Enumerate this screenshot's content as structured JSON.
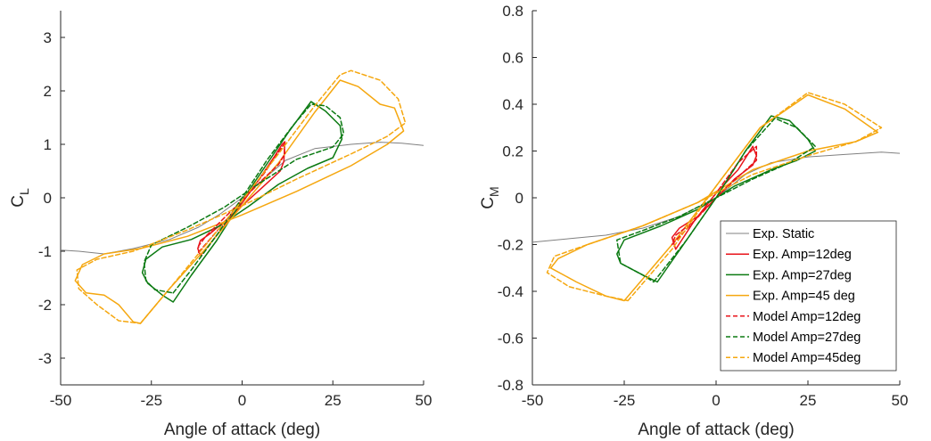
{
  "chart_data": [
    {
      "type": "line",
      "xlabel": "Angle of attack (deg)",
      "ylabel_main": "C",
      "ylabel_sub": "L",
      "xlim": [
        -50,
        50
      ],
      "ylim": [
        -3.5,
        3.5
      ],
      "xticks": [
        -50,
        -25,
        0,
        25,
        50
      ],
      "yticks": [
        -3,
        -2,
        -1,
        0,
        1,
        2,
        3
      ],
      "grid": false,
      "series": [
        {
          "name": "Exp. Static",
          "color": "#808080",
          "style": "solid",
          "points": [
            [
              -50,
              -0.98
            ],
            [
              -45,
              -1.0
            ],
            [
              -38,
              -1.05
            ],
            [
              -30,
              -0.95
            ],
            [
              -20,
              -0.78
            ],
            [
              -12,
              -0.55
            ],
            [
              -6,
              -0.3
            ],
            [
              0,
              0.0
            ],
            [
              6,
              0.35
            ],
            [
              12,
              0.7
            ],
            [
              20,
              0.92
            ],
            [
              30,
              1.0
            ],
            [
              38,
              1.04
            ],
            [
              44,
              1.02
            ],
            [
              50,
              0.98
            ]
          ]
        },
        {
          "name": "Exp. Amp=12deg",
          "color": "#e8141b",
          "style": "solid",
          "points": [
            [
              -11.5,
              -1.08
            ],
            [
              -6,
              -0.62
            ],
            [
              0,
              -0.1
            ],
            [
              5,
              0.38
            ],
            [
              9,
              0.78
            ],
            [
              11,
              1.0
            ],
            [
              11.8,
              1.05
            ],
            [
              11.5,
              0.68
            ],
            [
              10.5,
              0.5
            ],
            [
              6,
              0.22
            ],
            [
              0,
              -0.15
            ],
            [
              -5,
              -0.45
            ],
            [
              -9,
              -0.68
            ],
            [
              -11.5,
              -0.8
            ],
            [
              -12.2,
              -0.95
            ],
            [
              -11.5,
              -1.08
            ]
          ]
        },
        {
          "name": "Exp. Amp=27deg",
          "color": "#0b7a12",
          "style": "solid",
          "points": [
            [
              -19,
              -1.95
            ],
            [
              -14,
              -1.45
            ],
            [
              -7,
              -0.8
            ],
            [
              0,
              -0.05
            ],
            [
              7,
              0.65
            ],
            [
              13,
              1.25
            ],
            [
              19,
              1.8
            ],
            [
              23,
              1.62
            ],
            [
              27,
              1.35
            ],
            [
              27.5,
              1.1
            ],
            [
              25,
              0.75
            ],
            [
              18,
              0.55
            ],
            [
              10,
              0.25
            ],
            [
              2,
              -0.15
            ],
            [
              -6,
              -0.52
            ],
            [
              -14,
              -0.78
            ],
            [
              -22,
              -0.92
            ],
            [
              -26.5,
              -1.15
            ],
            [
              -27.5,
              -1.4
            ],
            [
              -26,
              -1.6
            ],
            [
              -22,
              -1.82
            ],
            [
              -19,
              -1.95
            ]
          ]
        },
        {
          "name": "Exp. Amp=45 deg",
          "color": "#f5a70f",
          "style": "solid",
          "points": [
            [
              -28,
              -2.35
            ],
            [
              -20,
              -1.7
            ],
            [
              -10,
              -0.95
            ],
            [
              0,
              -0.15
            ],
            [
              10,
              0.65
            ],
            [
              20,
              1.6
            ],
            [
              27,
              2.2
            ],
            [
              32,
              2.08
            ],
            [
              38,
              1.75
            ],
            [
              42,
              1.68
            ],
            [
              44.5,
              1.25
            ],
            [
              40,
              1.0
            ],
            [
              30,
              0.6
            ],
            [
              15,
              0.12
            ],
            [
              0,
              -0.32
            ],
            [
              -15,
              -0.72
            ],
            [
              -28,
              -0.95
            ],
            [
              -38,
              -1.05
            ],
            [
              -44,
              -1.25
            ],
            [
              -46,
              -1.55
            ],
            [
              -43,
              -1.78
            ],
            [
              -38,
              -1.82
            ],
            [
              -34,
              -2.0
            ],
            [
              -30,
              -2.32
            ],
            [
              -28,
              -2.35
            ]
          ]
        },
        {
          "name": "Model Amp=12deg",
          "color": "#e8141b",
          "style": "dashed",
          "points": [
            [
              -12,
              -1.02
            ],
            [
              -6,
              -0.55
            ],
            [
              0,
              -0.05
            ],
            [
              6,
              0.45
            ],
            [
              11.5,
              1.0
            ],
            [
              11.8,
              0.82
            ],
            [
              10,
              0.62
            ],
            [
              5,
              0.3
            ],
            [
              0,
              -0.05
            ],
            [
              -5,
              -0.38
            ],
            [
              -10,
              -0.72
            ],
            [
              -12,
              -0.9
            ],
            [
              -12,
              -1.02
            ]
          ]
        },
        {
          "name": "Model Amp=27deg",
          "color": "#0b7a12",
          "style": "dashed",
          "points": [
            [
              -19,
              -1.78
            ],
            [
              -14,
              -1.35
            ],
            [
              -7,
              -0.7
            ],
            [
              0,
              0.0
            ],
            [
              7,
              0.72
            ],
            [
              14,
              1.35
            ],
            [
              19,
              1.75
            ],
            [
              23,
              1.72
            ],
            [
              27,
              1.5
            ],
            [
              28,
              1.2
            ],
            [
              25,
              0.95
            ],
            [
              15,
              0.72
            ],
            [
              5,
              0.28
            ],
            [
              -5,
              -0.18
            ],
            [
              -15,
              -0.55
            ],
            [
              -25,
              -0.88
            ],
            [
              -27,
              -1.2
            ],
            [
              -26.5,
              -1.55
            ],
            [
              -24,
              -1.72
            ],
            [
              -19,
              -1.78
            ]
          ]
        },
        {
          "name": "Model Amp=45deg",
          "color": "#f5a70f",
          "style": "dashed",
          "points": [
            [
              -28,
              -2.35
            ],
            [
              -20,
              -1.7
            ],
            [
              -10,
              -0.88
            ],
            [
              0,
              -0.05
            ],
            [
              10,
              0.82
            ],
            [
              20,
              1.72
            ],
            [
              27,
              2.3
            ],
            [
              30,
              2.38
            ],
            [
              38,
              2.2
            ],
            [
              43,
              1.85
            ],
            [
              45,
              1.4
            ],
            [
              40,
              1.15
            ],
            [
              30,
              0.82
            ],
            [
              15,
              0.35
            ],
            [
              0,
              -0.15
            ],
            [
              -15,
              -0.6
            ],
            [
              -30,
              -1.0
            ],
            [
              -40,
              -1.15
            ],
            [
              -45.5,
              -1.35
            ],
            [
              -45,
              -1.7
            ],
            [
              -40,
              -2.0
            ],
            [
              -34,
              -2.3
            ],
            [
              -28,
              -2.35
            ]
          ]
        }
      ]
    },
    {
      "type": "line",
      "xlabel": "Angle of attack (deg)",
      "ylabel_main": "C",
      "ylabel_sub": "M",
      "xlim": [
        -50,
        50
      ],
      "ylim": [
        -0.8,
        0.8
      ],
      "xticks": [
        -50,
        -25,
        0,
        25,
        50
      ],
      "yticks": [
        -0.8,
        -0.6,
        -0.4,
        -0.2,
        0,
        0.2,
        0.4,
        0.6,
        0.8
      ],
      "grid": false,
      "legend": "bottom-right",
      "series": [
        {
          "name": "Exp. Static",
          "color": "#808080",
          "style": "solid",
          "points": [
            [
              -50,
              -0.19
            ],
            [
              -40,
              -0.175
            ],
            [
              -30,
              -0.16
            ],
            [
              -20,
              -0.13
            ],
            [
              -10,
              -0.08
            ],
            [
              0,
              0.0
            ],
            [
              8,
              0.1
            ],
            [
              15,
              0.15
            ],
            [
              25,
              0.175
            ],
            [
              35,
              0.185
            ],
            [
              45,
              0.195
            ],
            [
              50,
              0.19
            ]
          ]
        },
        {
          "name": "Exp. Amp=12deg",
          "color": "#e8141b",
          "style": "solid",
          "points": [
            [
              -11,
              -0.22
            ],
            [
              -6,
              -0.1
            ],
            [
              0,
              0.02
            ],
            [
              6,
              0.12
            ],
            [
              10,
              0.22
            ],
            [
              11,
              0.18
            ],
            [
              10,
              0.14
            ],
            [
              5,
              0.08
            ],
            [
              0,
              0.0
            ],
            [
              -5,
              -0.08
            ],
            [
              -10,
              -0.13
            ],
            [
              -12,
              -0.17
            ],
            [
              -11,
              -0.22
            ]
          ]
        },
        {
          "name": "Exp. Amp=27deg",
          "color": "#0b7a12",
          "style": "solid",
          "points": [
            [
              -16,
              -0.36
            ],
            [
              -8,
              -0.18
            ],
            [
              0,
              0.0
            ],
            [
              8,
              0.2
            ],
            [
              15,
              0.35
            ],
            [
              20,
              0.33
            ],
            [
              25,
              0.25
            ],
            [
              27,
              0.2
            ],
            [
              22,
              0.16
            ],
            [
              15,
              0.12
            ],
            [
              5,
              0.05
            ],
            [
              -5,
              -0.05
            ],
            [
              -15,
              -0.12
            ],
            [
              -25,
              -0.18
            ],
            [
              -27,
              -0.24
            ],
            [
              -26,
              -0.28
            ],
            [
              -20,
              -0.33
            ],
            [
              -16,
              -0.36
            ]
          ]
        },
        {
          "name": "Exp. Amp=45 deg",
          "color": "#f5a70f",
          "style": "solid",
          "points": [
            [
              -25,
              -0.44
            ],
            [
              -12,
              -0.2
            ],
            [
              0,
              0.05
            ],
            [
              12,
              0.3
            ],
            [
              25,
              0.44
            ],
            [
              35,
              0.38
            ],
            [
              44,
              0.28
            ],
            [
              38,
              0.24
            ],
            [
              25,
              0.2
            ],
            [
              10,
              0.12
            ],
            [
              -5,
              -0.02
            ],
            [
              -20,
              -0.12
            ],
            [
              -35,
              -0.2
            ],
            [
              -43,
              -0.26
            ],
            [
              -45,
              -0.3
            ],
            [
              -38,
              -0.36
            ],
            [
              -30,
              -0.42
            ],
            [
              -25,
              -0.44
            ]
          ]
        },
        {
          "name": "Model Amp=12deg",
          "color": "#e8141b",
          "style": "dashed",
          "points": [
            [
              -12,
              -0.2
            ],
            [
              -6,
              -0.1
            ],
            [
              0,
              0.02
            ],
            [
              6,
              0.15
            ],
            [
              11,
              0.22
            ],
            [
              11,
              0.16
            ],
            [
              6,
              0.09
            ],
            [
              0,
              0.0
            ],
            [
              -6,
              -0.1
            ],
            [
              -11,
              -0.16
            ],
            [
              -12,
              -0.2
            ]
          ]
        },
        {
          "name": "Model Amp=27deg",
          "color": "#0b7a12",
          "style": "dashed",
          "points": [
            [
              -17,
              -0.36
            ],
            [
              -8,
              -0.18
            ],
            [
              0,
              0.0
            ],
            [
              8,
              0.2
            ],
            [
              16,
              0.34
            ],
            [
              22,
              0.3
            ],
            [
              27,
              0.22
            ],
            [
              20,
              0.15
            ],
            [
              10,
              0.08
            ],
            [
              0,
              0.0
            ],
            [
              -10,
              -0.08
            ],
            [
              -20,
              -0.14
            ],
            [
              -27,
              -0.18
            ],
            [
              -26,
              -0.28
            ],
            [
              -20,
              -0.33
            ],
            [
              -17,
              -0.36
            ]
          ]
        },
        {
          "name": "Model Amp=45deg",
          "color": "#f5a70f",
          "style": "dashed",
          "points": [
            [
              -24,
              -0.44
            ],
            [
              -12,
              -0.22
            ],
            [
              0,
              0.05
            ],
            [
              12,
              0.3
            ],
            [
              25,
              0.45
            ],
            [
              35,
              0.4
            ],
            [
              45,
              0.3
            ],
            [
              38,
              0.24
            ],
            [
              25,
              0.18
            ],
            [
              10,
              0.1
            ],
            [
              -5,
              -0.02
            ],
            [
              -20,
              -0.12
            ],
            [
              -35,
              -0.2
            ],
            [
              -44,
              -0.25
            ],
            [
              -46,
              -0.32
            ],
            [
              -40,
              -0.38
            ],
            [
              -30,
              -0.42
            ],
            [
              -24,
              -0.44
            ]
          ]
        }
      ]
    }
  ]
}
